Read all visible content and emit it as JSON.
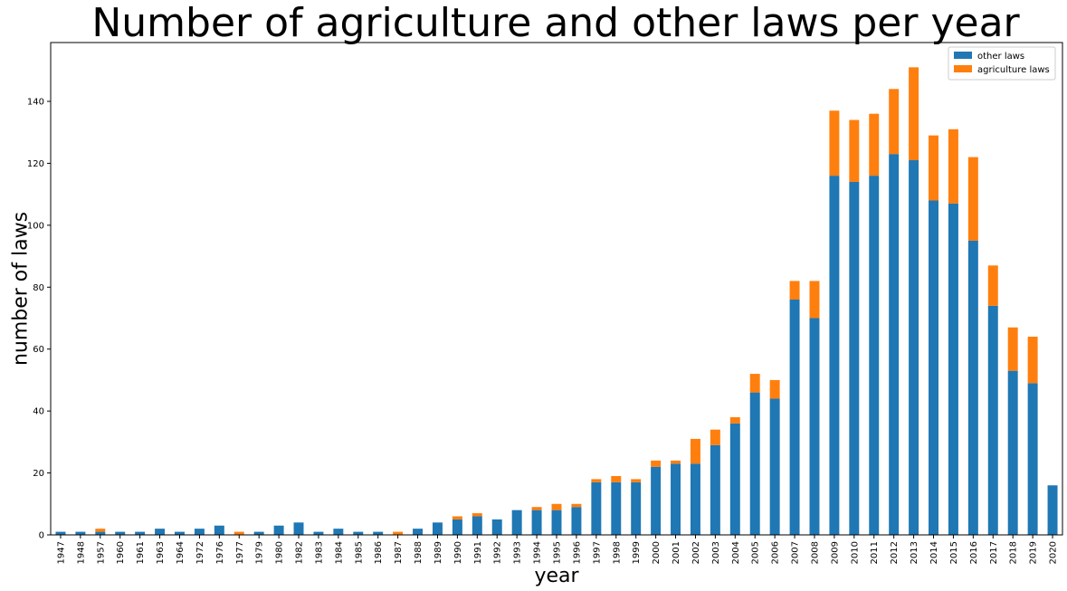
{
  "chart_data": {
    "type": "bar",
    "stacked": true,
    "title": "Number of agriculture and other laws per year",
    "xlabel": "year",
    "ylabel": "number of laws",
    "ylim": [
      0,
      159
    ],
    "yticks": [
      0,
      20,
      40,
      60,
      80,
      100,
      120,
      140
    ],
    "legend_position": "top-right",
    "grid": false,
    "categories": [
      "1947",
      "1948",
      "1957",
      "1960",
      "1961",
      "1963",
      "1964",
      "1972",
      "1976",
      "1977",
      "1979",
      "1980",
      "1982",
      "1983",
      "1984",
      "1985",
      "1986",
      "1987",
      "1988",
      "1989",
      "1990",
      "1991",
      "1992",
      "1993",
      "1994",
      "1995",
      "1996",
      "1997",
      "1998",
      "1999",
      "2000",
      "2001",
      "2002",
      "2003",
      "2004",
      "2005",
      "2006",
      "2007",
      "2008",
      "2009",
      "2010",
      "2011",
      "2012",
      "2013",
      "2014",
      "2015",
      "2016",
      "2017",
      "2018",
      "2019",
      "2020"
    ],
    "series": [
      {
        "name": "other laws",
        "color": "#1f77b4",
        "values": [
          1,
          1,
          1,
          1,
          1,
          2,
          1,
          2,
          3,
          0,
          1,
          3,
          4,
          1,
          2,
          1,
          1,
          0,
          2,
          4,
          5,
          6,
          5,
          8,
          8,
          8,
          9,
          17,
          17,
          17,
          22,
          23,
          23,
          29,
          36,
          46,
          44,
          76,
          70,
          116,
          114,
          116,
          123,
          121,
          108,
          107,
          95,
          74,
          53,
          49,
          16
        ]
      },
      {
        "name": "agriculture laws",
        "color": "#ff7f0e",
        "values": [
          0,
          0,
          1,
          0,
          0,
          0,
          0,
          0,
          0,
          1,
          0,
          0,
          0,
          0,
          0,
          0,
          0,
          1,
          0,
          0,
          1,
          1,
          0,
          0,
          1,
          2,
          1,
          1,
          2,
          1,
          2,
          1,
          8,
          5,
          2,
          6,
          6,
          6,
          12,
          21,
          20,
          20,
          21,
          30,
          21,
          24,
          27,
          13,
          14,
          15,
          0
        ]
      }
    ]
  }
}
